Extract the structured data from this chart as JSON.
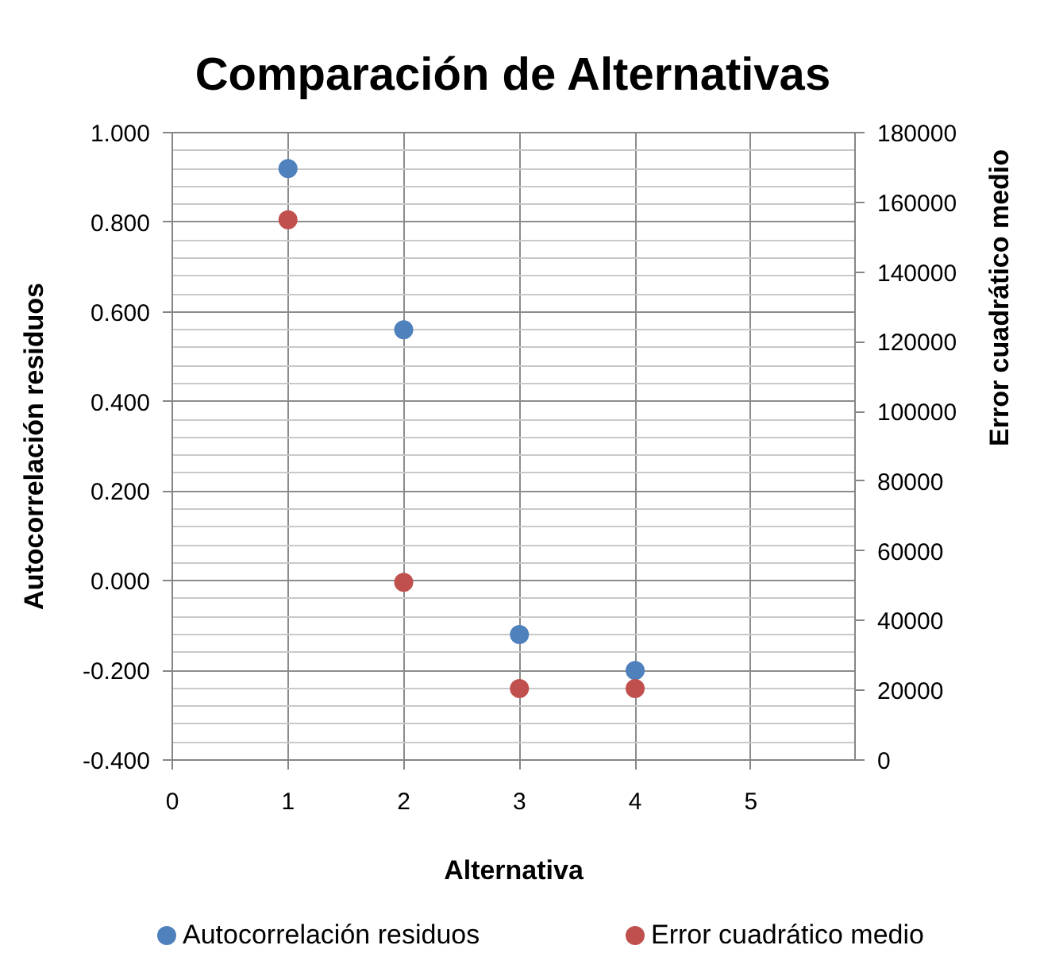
{
  "chart_data": {
    "type": "scatter",
    "title": "Comparación de Alternativas",
    "xlabel": "Alternativa",
    "ylabel": "Autocorrelación residuos",
    "y2label": "Error cuadrático medio",
    "x": [
      1,
      2,
      3,
      4
    ],
    "xlim": [
      0,
      5.9
    ],
    "xticks": [
      0,
      1,
      2,
      3,
      4,
      5
    ],
    "ylim": [
      -0.4,
      1.0
    ],
    "yticks": [
      {
        "value": -0.4,
        "label": "-0.400"
      },
      {
        "value": -0.2,
        "label": "-0.200"
      },
      {
        "value": 0,
        "label": "0.000"
      },
      {
        "value": 0.2,
        "label": "0.200"
      },
      {
        "value": 0.4,
        "label": "0.400"
      },
      {
        "value": 0.6,
        "label": "0.600"
      },
      {
        "value": 0.8,
        "label": "0.800"
      },
      {
        "value": 1.0,
        "label": "1.000"
      }
    ],
    "y2lim": [
      0,
      180000
    ],
    "y2ticks": [
      0,
      20000,
      40000,
      60000,
      80000,
      100000,
      120000,
      140000,
      160000,
      180000
    ],
    "series": [
      {
        "name": "Autocorrelación residuos",
        "color": "#4f81bd",
        "values": [
          0.92,
          0.56,
          -0.12,
          -0.2
        ]
      },
      {
        "name": "Error cuadrático medio",
        "color": "#c0504d",
        "axis": "y2",
        "values": [
          155000,
          51000,
          20500,
          20500
        ]
      }
    ],
    "marker": "circle",
    "grid": true,
    "legend": "bottom"
  }
}
